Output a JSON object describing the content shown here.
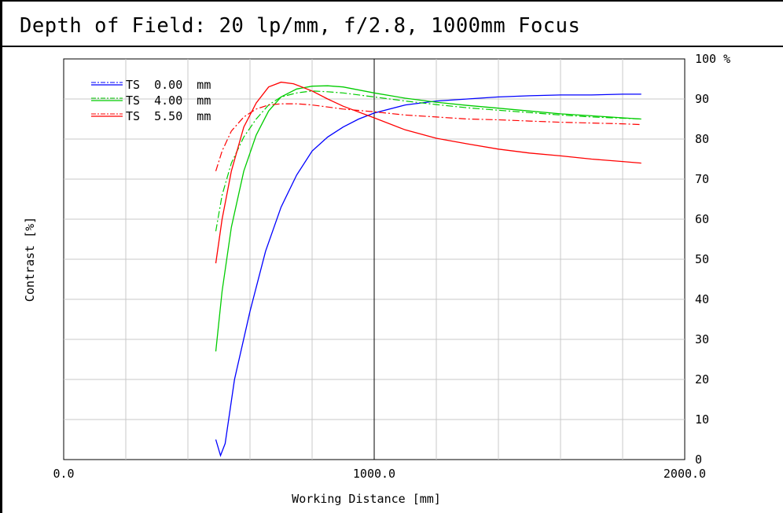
{
  "chart_data": {
    "type": "line",
    "title": "Depth of Field: 20 lp/mm, f/2.8, 1000mm Focus",
    "xlabel": "Working Distance [mm]",
    "ylabel": "Contrast [%]",
    "xlim": [
      0,
      2000
    ],
    "ylim": [
      0,
      100
    ],
    "x_ticks": [
      "0.0",
      "1000.0",
      "2000.0"
    ],
    "y_ticks": [
      "0",
      "10",
      "20",
      "30",
      "40",
      "50",
      "60",
      "70",
      "80",
      "90",
      "100 %"
    ],
    "grid": true,
    "legend_position": "top-left",
    "series": [
      {
        "name": "TS  0.00  mm",
        "color": "#0000ff",
        "tangential": [
          [
            490,
            5
          ],
          [
            505,
            1
          ],
          [
            520,
            4
          ],
          [
            550,
            20
          ],
          [
            600,
            37
          ],
          [
            650,
            52
          ],
          [
            700,
            63
          ],
          [
            750,
            71
          ],
          [
            800,
            77
          ],
          [
            850,
            80.5
          ],
          [
            900,
            83
          ],
          [
            950,
            85
          ],
          [
            1000,
            86.5
          ],
          [
            1100,
            88.5
          ],
          [
            1200,
            89.5
          ],
          [
            1300,
            90
          ],
          [
            1400,
            90.5
          ],
          [
            1500,
            90.8
          ],
          [
            1600,
            91
          ],
          [
            1700,
            91
          ],
          [
            1800,
            91.2
          ],
          [
            1860,
            91.2
          ]
        ],
        "sagittal": [
          [
            490,
            5
          ],
          [
            505,
            1
          ],
          [
            520,
            4
          ],
          [
            550,
            20
          ],
          [
            600,
            37
          ],
          [
            650,
            52
          ],
          [
            700,
            63
          ],
          [
            750,
            71
          ],
          [
            800,
            77
          ],
          [
            850,
            80.5
          ],
          [
            900,
            83
          ],
          [
            950,
            85
          ],
          [
            1000,
            86.5
          ],
          [
            1100,
            88.5
          ],
          [
            1200,
            89.5
          ],
          [
            1300,
            90
          ],
          [
            1400,
            90.5
          ],
          [
            1500,
            90.8
          ],
          [
            1600,
            91
          ],
          [
            1700,
            91
          ],
          [
            1800,
            91.2
          ],
          [
            1860,
            91.2
          ]
        ]
      },
      {
        "name": "TS  4.00  mm",
        "color": "#00cc00",
        "tangential": [
          [
            490,
            27
          ],
          [
            510,
            42
          ],
          [
            540,
            58
          ],
          [
            580,
            72
          ],
          [
            620,
            81
          ],
          [
            660,
            87
          ],
          [
            700,
            90.5
          ],
          [
            750,
            92.5
          ],
          [
            800,
            93.2
          ],
          [
            850,
            93.3
          ],
          [
            900,
            93
          ],
          [
            1000,
            91.5
          ],
          [
            1100,
            90.2
          ],
          [
            1200,
            89.2
          ],
          [
            1300,
            88.4
          ],
          [
            1400,
            87.7
          ],
          [
            1500,
            87
          ],
          [
            1600,
            86.3
          ],
          [
            1700,
            85.8
          ],
          [
            1800,
            85.3
          ],
          [
            1860,
            85
          ]
        ],
        "sagittal": [
          [
            490,
            57
          ],
          [
            510,
            66
          ],
          [
            540,
            74
          ],
          [
            580,
            80.5
          ],
          [
            620,
            85
          ],
          [
            660,
            88.5
          ],
          [
            700,
            90.5
          ],
          [
            750,
            91.5
          ],
          [
            800,
            92
          ],
          [
            850,
            91.8
          ],
          [
            900,
            91.5
          ],
          [
            1000,
            90.5
          ],
          [
            1100,
            89.5
          ],
          [
            1200,
            88.6
          ],
          [
            1300,
            87.8
          ],
          [
            1400,
            87.2
          ],
          [
            1500,
            86.6
          ],
          [
            1600,
            86
          ],
          [
            1700,
            85.5
          ],
          [
            1800,
            85.2
          ],
          [
            1860,
            85
          ]
        ]
      },
      {
        "name": "TS  5.50  mm",
        "color": "#ff0000",
        "tangential": [
          [
            490,
            49
          ],
          [
            510,
            60
          ],
          [
            540,
            72
          ],
          [
            580,
            83
          ],
          [
            620,
            89
          ],
          [
            660,
            93
          ],
          [
            700,
            94.2
          ],
          [
            740,
            93.8
          ],
          [
            800,
            92
          ],
          [
            850,
            90
          ],
          [
            900,
            88.2
          ],
          [
            1000,
            85.3
          ],
          [
            1100,
            82.3
          ],
          [
            1200,
            80.2
          ],
          [
            1300,
            78.8
          ],
          [
            1400,
            77.5
          ],
          [
            1500,
            76.5
          ],
          [
            1600,
            75.8
          ],
          [
            1700,
            75
          ],
          [
            1800,
            74.4
          ],
          [
            1860,
            74
          ]
        ],
        "sagittal": [
          [
            490,
            72
          ],
          [
            510,
            77
          ],
          [
            540,
            82
          ],
          [
            580,
            85.5
          ],
          [
            620,
            87.5
          ],
          [
            660,
            88.5
          ],
          [
            700,
            88.8
          ],
          [
            750,
            88.8
          ],
          [
            800,
            88.5
          ],
          [
            850,
            88
          ],
          [
            900,
            87.5
          ],
          [
            1000,
            86.8
          ],
          [
            1100,
            86
          ],
          [
            1200,
            85.5
          ],
          [
            1300,
            85
          ],
          [
            1400,
            84.8
          ],
          [
            1500,
            84.5
          ],
          [
            1600,
            84.2
          ],
          [
            1700,
            84
          ],
          [
            1800,
            83.8
          ],
          [
            1860,
            83.6
          ]
        ]
      }
    ]
  }
}
